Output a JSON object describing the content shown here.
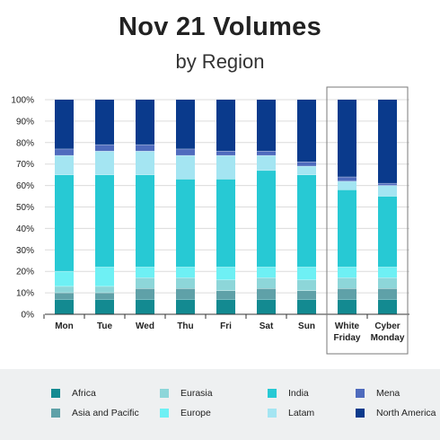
{
  "header": {
    "title": "Nov 21 Volumes",
    "subtitle": "by Region"
  },
  "chart_data": {
    "type": "bar",
    "stacked": true,
    "percent": true,
    "categories": [
      "Mon",
      "Tue",
      "Wed",
      "Thu",
      "Fri",
      "Sat",
      "Sun",
      "White Friday",
      "Cyber Monday"
    ],
    "highlight": [
      "White Friday",
      "Cyber Monday"
    ],
    "yticks": [
      "0%",
      "10%",
      "20%",
      "30%",
      "40%",
      "50%",
      "60%",
      "70%",
      "80%",
      "90%",
      "100%"
    ],
    "ylim": [
      0,
      100
    ],
    "grid": true,
    "legend_position": "bottom",
    "series": [
      {
        "name": "Africa",
        "color": "#138a91",
        "values": [
          7,
          7,
          7,
          7,
          7,
          7,
          7,
          7,
          7
        ]
      },
      {
        "name": "Asia and Pacific",
        "color": "#5fa1a8",
        "values": [
          3,
          3,
          5,
          5,
          4,
          5,
          4,
          5,
          5
        ]
      },
      {
        "name": "Eurasia",
        "color": "#8dd6d9",
        "values": [
          3,
          3,
          5,
          5,
          5,
          5,
          5,
          5,
          5
        ]
      },
      {
        "name": "Europe",
        "color": "#6ef0f4",
        "values": [
          7,
          9,
          5,
          5,
          6,
          5,
          6,
          5,
          5
        ]
      },
      {
        "name": "India",
        "color": "#27c9d4",
        "values": [
          45,
          43,
          43,
          41,
          41,
          45,
          43,
          36,
          33
        ]
      },
      {
        "name": "Latam",
        "color": "#a4e5f2",
        "values": [
          9,
          11,
          11,
          11,
          11,
          7,
          4,
          4,
          5
        ]
      },
      {
        "name": "Mena",
        "color": "#4f6bbd",
        "values": [
          3,
          3,
          3,
          3,
          2,
          2,
          2,
          2,
          1
        ]
      },
      {
        "name": "North America",
        "color": "#0a3a8c",
        "values": [
          23,
          21,
          21,
          23,
          24,
          24,
          29,
          36,
          39
        ]
      }
    ]
  }
}
